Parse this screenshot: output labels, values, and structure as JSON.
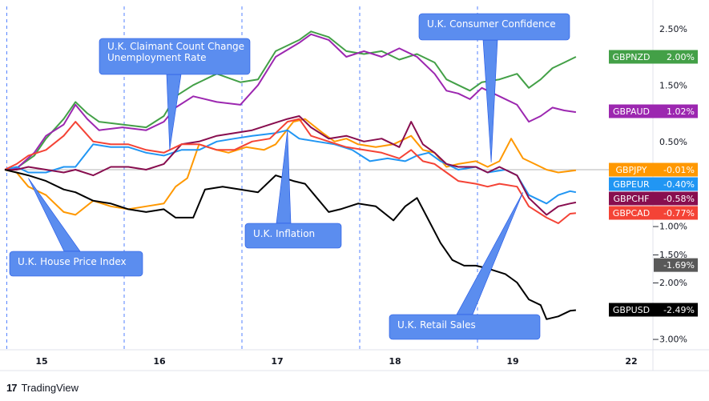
{
  "chart_data": {
    "type": "line",
    "x_labels": [
      "15",
      "16",
      "17",
      "18",
      "19",
      "22"
    ],
    "y_ticks": [
      "2.50%",
      "1.50%",
      "0.50%",
      "−1.00%",
      "−1.50%",
      "−2.00%",
      "−3.00%"
    ],
    "y_tick_values": [
      2.5,
      1.5,
      0.5,
      -1.0,
      -1.5,
      -2.0,
      -3.0
    ],
    "ylim": [
      -3.2,
      2.8
    ],
    "x_range": [
      0,
      5.4
    ],
    "grid": false,
    "series": [
      {
        "name": "GBPNZD",
        "color": "#43a047",
        "last_value": "2.00%",
        "points": [
          [
            0,
            0
          ],
          [
            0.1,
            0.03
          ],
          [
            0.25,
            0.25
          ],
          [
            0.35,
            0.55
          ],
          [
            0.5,
            0.9
          ],
          [
            0.6,
            1.2
          ],
          [
            0.7,
            1.0
          ],
          [
            0.8,
            0.85
          ],
          [
            1.0,
            0.8
          ],
          [
            1.2,
            0.75
          ],
          [
            1.35,
            0.95
          ],
          [
            1.45,
            1.3
          ],
          [
            1.6,
            1.5
          ],
          [
            1.8,
            1.7
          ],
          [
            2.0,
            1.55
          ],
          [
            2.15,
            1.6
          ],
          [
            2.3,
            2.1
          ],
          [
            2.5,
            2.3
          ],
          [
            2.6,
            2.45
          ],
          [
            2.75,
            2.35
          ],
          [
            2.9,
            2.1
          ],
          [
            3.05,
            2.05
          ],
          [
            3.2,
            2.1
          ],
          [
            3.35,
            1.95
          ],
          [
            3.5,
            2.05
          ],
          [
            3.65,
            1.9
          ],
          [
            3.75,
            1.6
          ],
          [
            3.85,
            1.5
          ],
          [
            3.95,
            1.4
          ],
          [
            4.05,
            1.55
          ],
          [
            4.2,
            1.6
          ],
          [
            4.35,
            1.7
          ],
          [
            4.45,
            1.45
          ],
          [
            4.55,
            1.6
          ],
          [
            4.65,
            1.8
          ],
          [
            4.75,
            1.9
          ],
          [
            4.85,
            2.0
          ]
        ]
      },
      {
        "name": "GBPAUD",
        "color": "#9c27b0",
        "last_value": "1.02%",
        "points": [
          [
            0,
            0
          ],
          [
            0.1,
            0.02
          ],
          [
            0.25,
            0.3
          ],
          [
            0.35,
            0.6
          ],
          [
            0.5,
            0.8
          ],
          [
            0.6,
            1.15
          ],
          [
            0.7,
            0.9
          ],
          [
            0.8,
            0.7
          ],
          [
            1.0,
            0.75
          ],
          [
            1.2,
            0.7
          ],
          [
            1.35,
            0.85
          ],
          [
            1.45,
            1.1
          ],
          [
            1.6,
            1.3
          ],
          [
            1.8,
            1.2
          ],
          [
            2.0,
            1.15
          ],
          [
            2.15,
            1.5
          ],
          [
            2.3,
            2.0
          ],
          [
            2.5,
            2.25
          ],
          [
            2.6,
            2.4
          ],
          [
            2.75,
            2.3
          ],
          [
            2.9,
            2.0
          ],
          [
            3.05,
            2.1
          ],
          [
            3.2,
            2.0
          ],
          [
            3.35,
            2.15
          ],
          [
            3.5,
            2.0
          ],
          [
            3.65,
            1.7
          ],
          [
            3.75,
            1.4
          ],
          [
            3.85,
            1.35
          ],
          [
            3.95,
            1.25
          ],
          [
            4.05,
            1.45
          ],
          [
            4.2,
            1.3
          ],
          [
            4.35,
            1.15
          ],
          [
            4.45,
            0.85
          ],
          [
            4.55,
            0.95
          ],
          [
            4.65,
            1.1
          ],
          [
            4.75,
            1.05
          ],
          [
            4.85,
            1.02
          ]
        ]
      },
      {
        "name": "GBPJPY",
        "color": "#ff9800",
        "last_value": "-0.01%",
        "points": [
          [
            0,
            0
          ],
          [
            0.1,
            -0.05
          ],
          [
            0.2,
            -0.3
          ],
          [
            0.35,
            -0.45
          ],
          [
            0.5,
            -0.75
          ],
          [
            0.6,
            -0.8
          ],
          [
            0.75,
            -0.55
          ],
          [
            0.9,
            -0.65
          ],
          [
            1.05,
            -0.7
          ],
          [
            1.2,
            -0.65
          ],
          [
            1.35,
            -0.6
          ],
          [
            1.45,
            -0.3
          ],
          [
            1.55,
            -0.15
          ],
          [
            1.65,
            0.45
          ],
          [
            1.8,
            0.35
          ],
          [
            1.9,
            0.3
          ],
          [
            2.05,
            0.4
          ],
          [
            2.2,
            0.35
          ],
          [
            2.3,
            0.45
          ],
          [
            2.45,
            0.85
          ],
          [
            2.55,
            0.9
          ],
          [
            2.7,
            0.65
          ],
          [
            2.8,
            0.5
          ],
          [
            2.9,
            0.55
          ],
          [
            3.0,
            0.45
          ],
          [
            3.15,
            0.4
          ],
          [
            3.3,
            0.45
          ],
          [
            3.45,
            0.6
          ],
          [
            3.55,
            0.35
          ],
          [
            3.65,
            0.3
          ],
          [
            3.75,
            0.05
          ],
          [
            3.85,
            0.1
          ],
          [
            4.0,
            0.15
          ],
          [
            4.1,
            0.05
          ],
          [
            4.2,
            0.15
          ],
          [
            4.3,
            0.55
          ],
          [
            4.4,
            0.2
          ],
          [
            4.5,
            0.1
          ],
          [
            4.6,
            0.0
          ],
          [
            4.7,
            -0.05
          ],
          [
            4.85,
            -0.01
          ]
        ]
      },
      {
        "name": "GBPEUR",
        "color": "#2196f3",
        "last_value": "-0.40%",
        "points": [
          [
            0,
            0
          ],
          [
            0.1,
            0.05
          ],
          [
            0.2,
            -0.05
          ],
          [
            0.35,
            -0.05
          ],
          [
            0.5,
            0.05
          ],
          [
            0.6,
            0.05
          ],
          [
            0.75,
            0.45
          ],
          [
            0.9,
            0.4
          ],
          [
            1.05,
            0.4
          ],
          [
            1.2,
            0.3
          ],
          [
            1.35,
            0.25
          ],
          [
            1.5,
            0.35
          ],
          [
            1.65,
            0.35
          ],
          [
            1.8,
            0.5
          ],
          [
            1.95,
            0.55
          ],
          [
            2.1,
            0.6
          ],
          [
            2.3,
            0.65
          ],
          [
            2.4,
            0.7
          ],
          [
            2.5,
            0.55
          ],
          [
            2.65,
            0.5
          ],
          [
            2.8,
            0.45
          ],
          [
            2.95,
            0.35
          ],
          [
            3.1,
            0.15
          ],
          [
            3.25,
            0.2
          ],
          [
            3.4,
            0.15
          ],
          [
            3.5,
            0.25
          ],
          [
            3.6,
            0.3
          ],
          [
            3.7,
            0.15
          ],
          [
            3.85,
            0.0
          ],
          [
            4.0,
            0.05
          ],
          [
            4.1,
            -0.05
          ],
          [
            4.25,
            0.0
          ],
          [
            4.35,
            -0.1
          ],
          [
            4.45,
            -0.45
          ],
          [
            4.6,
            -0.6
          ],
          [
            4.7,
            -0.45
          ],
          [
            4.8,
            -0.38
          ],
          [
            4.85,
            -0.4
          ]
        ]
      },
      {
        "name": "GBPCHF",
        "color": "#880e4f",
        "last_value": "-0.58%",
        "points": [
          [
            0,
            0
          ],
          [
            0.1,
            0.0
          ],
          [
            0.2,
            0.05
          ],
          [
            0.35,
            0.0
          ],
          [
            0.5,
            -0.05
          ],
          [
            0.6,
            0.0
          ],
          [
            0.75,
            -0.1
          ],
          [
            0.9,
            0.05
          ],
          [
            1.05,
            0.05
          ],
          [
            1.2,
            0.0
          ],
          [
            1.35,
            0.1
          ],
          [
            1.5,
            0.45
          ],
          [
            1.65,
            0.5
          ],
          [
            1.8,
            0.6
          ],
          [
            1.95,
            0.65
          ],
          [
            2.1,
            0.7
          ],
          [
            2.25,
            0.8
          ],
          [
            2.4,
            0.9
          ],
          [
            2.5,
            0.95
          ],
          [
            2.6,
            0.75
          ],
          [
            2.75,
            0.55
          ],
          [
            2.9,
            0.6
          ],
          [
            3.05,
            0.5
          ],
          [
            3.2,
            0.55
          ],
          [
            3.35,
            0.4
          ],
          [
            3.45,
            0.85
          ],
          [
            3.55,
            0.45
          ],
          [
            3.65,
            0.3
          ],
          [
            3.75,
            0.1
          ],
          [
            3.85,
            0.05
          ],
          [
            4.0,
            0.05
          ],
          [
            4.1,
            -0.05
          ],
          [
            4.2,
            0.05
          ],
          [
            4.35,
            -0.1
          ],
          [
            4.45,
            -0.5
          ],
          [
            4.6,
            -0.8
          ],
          [
            4.7,
            -0.65
          ],
          [
            4.8,
            -0.6
          ],
          [
            4.85,
            -0.58
          ]
        ]
      },
      {
        "name": "GBPCAD",
        "color": "#f44336",
        "last_value": "-0.77%",
        "points": [
          [
            0,
            0
          ],
          [
            0.1,
            0.1
          ],
          [
            0.2,
            0.25
          ],
          [
            0.35,
            0.35
          ],
          [
            0.5,
            0.6
          ],
          [
            0.6,
            0.85
          ],
          [
            0.75,
            0.5
          ],
          [
            0.9,
            0.45
          ],
          [
            1.05,
            0.45
          ],
          [
            1.2,
            0.35
          ],
          [
            1.35,
            0.3
          ],
          [
            1.5,
            0.45
          ],
          [
            1.65,
            0.45
          ],
          [
            1.8,
            0.35
          ],
          [
            1.95,
            0.35
          ],
          [
            2.1,
            0.5
          ],
          [
            2.25,
            0.55
          ],
          [
            2.4,
            0.85
          ],
          [
            2.5,
            0.9
          ],
          [
            2.6,
            0.6
          ],
          [
            2.75,
            0.5
          ],
          [
            2.9,
            0.4
          ],
          [
            3.05,
            0.35
          ],
          [
            3.2,
            0.3
          ],
          [
            3.35,
            0.2
          ],
          [
            3.45,
            0.35
          ],
          [
            3.55,
            0.15
          ],
          [
            3.65,
            0.1
          ],
          [
            3.75,
            -0.05
          ],
          [
            3.85,
            -0.2
          ],
          [
            4.0,
            -0.25
          ],
          [
            4.1,
            -0.3
          ],
          [
            4.2,
            -0.25
          ],
          [
            4.35,
            -0.3
          ],
          [
            4.45,
            -0.65
          ],
          [
            4.6,
            -0.85
          ],
          [
            4.7,
            -0.95
          ],
          [
            4.8,
            -0.78
          ],
          [
            4.85,
            -0.77
          ]
        ]
      },
      {
        "name": "GBPUSD",
        "color": "#000000",
        "last_value": "-2.49%",
        "points": [
          [
            0,
            0
          ],
          [
            0.1,
            -0.05
          ],
          [
            0.2,
            -0.1
          ],
          [
            0.35,
            -0.2
          ],
          [
            0.5,
            -0.35
          ],
          [
            0.6,
            -0.4
          ],
          [
            0.75,
            -0.55
          ],
          [
            0.9,
            -0.6
          ],
          [
            1.05,
            -0.7
          ],
          [
            1.2,
            -0.75
          ],
          [
            1.35,
            -0.7
          ],
          [
            1.45,
            -0.85
          ],
          [
            1.6,
            -0.85
          ],
          [
            1.7,
            -0.35
          ],
          [
            1.85,
            -0.3
          ],
          [
            2.0,
            -0.35
          ],
          [
            2.15,
            -0.4
          ],
          [
            2.3,
            -0.1
          ],
          [
            2.45,
            -0.2
          ],
          [
            2.55,
            -0.25
          ],
          [
            2.65,
            -0.5
          ],
          [
            2.75,
            -0.75
          ],
          [
            2.85,
            -0.7
          ],
          [
            3.0,
            -0.6
          ],
          [
            3.15,
            -0.65
          ],
          [
            3.3,
            -0.9
          ],
          [
            3.4,
            -0.65
          ],
          [
            3.5,
            -0.5
          ],
          [
            3.6,
            -0.9
          ],
          [
            3.7,
            -1.3
          ],
          [
            3.8,
            -1.6
          ],
          [
            3.9,
            -1.7
          ],
          [
            4.0,
            -1.7
          ],
          [
            4.1,
            -1.75
          ],
          [
            4.25,
            -1.85
          ],
          [
            4.35,
            -2.0
          ],
          [
            4.45,
            -2.3
          ],
          [
            4.55,
            -2.4
          ],
          [
            4.6,
            -2.65
          ],
          [
            4.7,
            -2.6
          ],
          [
            4.8,
            -2.5
          ],
          [
            4.85,
            -2.49
          ]
        ]
      }
    ],
    "extra_badge": {
      "label": "-1.69%",
      "value": -1.69,
      "color": "#595959"
    },
    "annotations": [
      {
        "text": [
          "U.K. Consumer Confidence"
        ],
        "target": [
          4.13,
          0.13
        ]
      },
      {
        "text": [
          "U.K. Claimant Count Change",
          "Unemployment Rate"
        ],
        "target": [
          1.4,
          0.35
        ]
      },
      {
        "text": [
          "U.K. Inflation"
        ],
        "target": [
          2.4,
          0.7
        ]
      },
      {
        "text": [
          "U.K. House Price Index"
        ],
        "target": [
          0.2,
          -0.15
        ]
      },
      {
        "text": [
          "U.K. Retail Sales"
        ],
        "target": [
          4.4,
          -0.4
        ]
      }
    ]
  },
  "brand": {
    "logo": "17",
    "name": "TradingView"
  }
}
